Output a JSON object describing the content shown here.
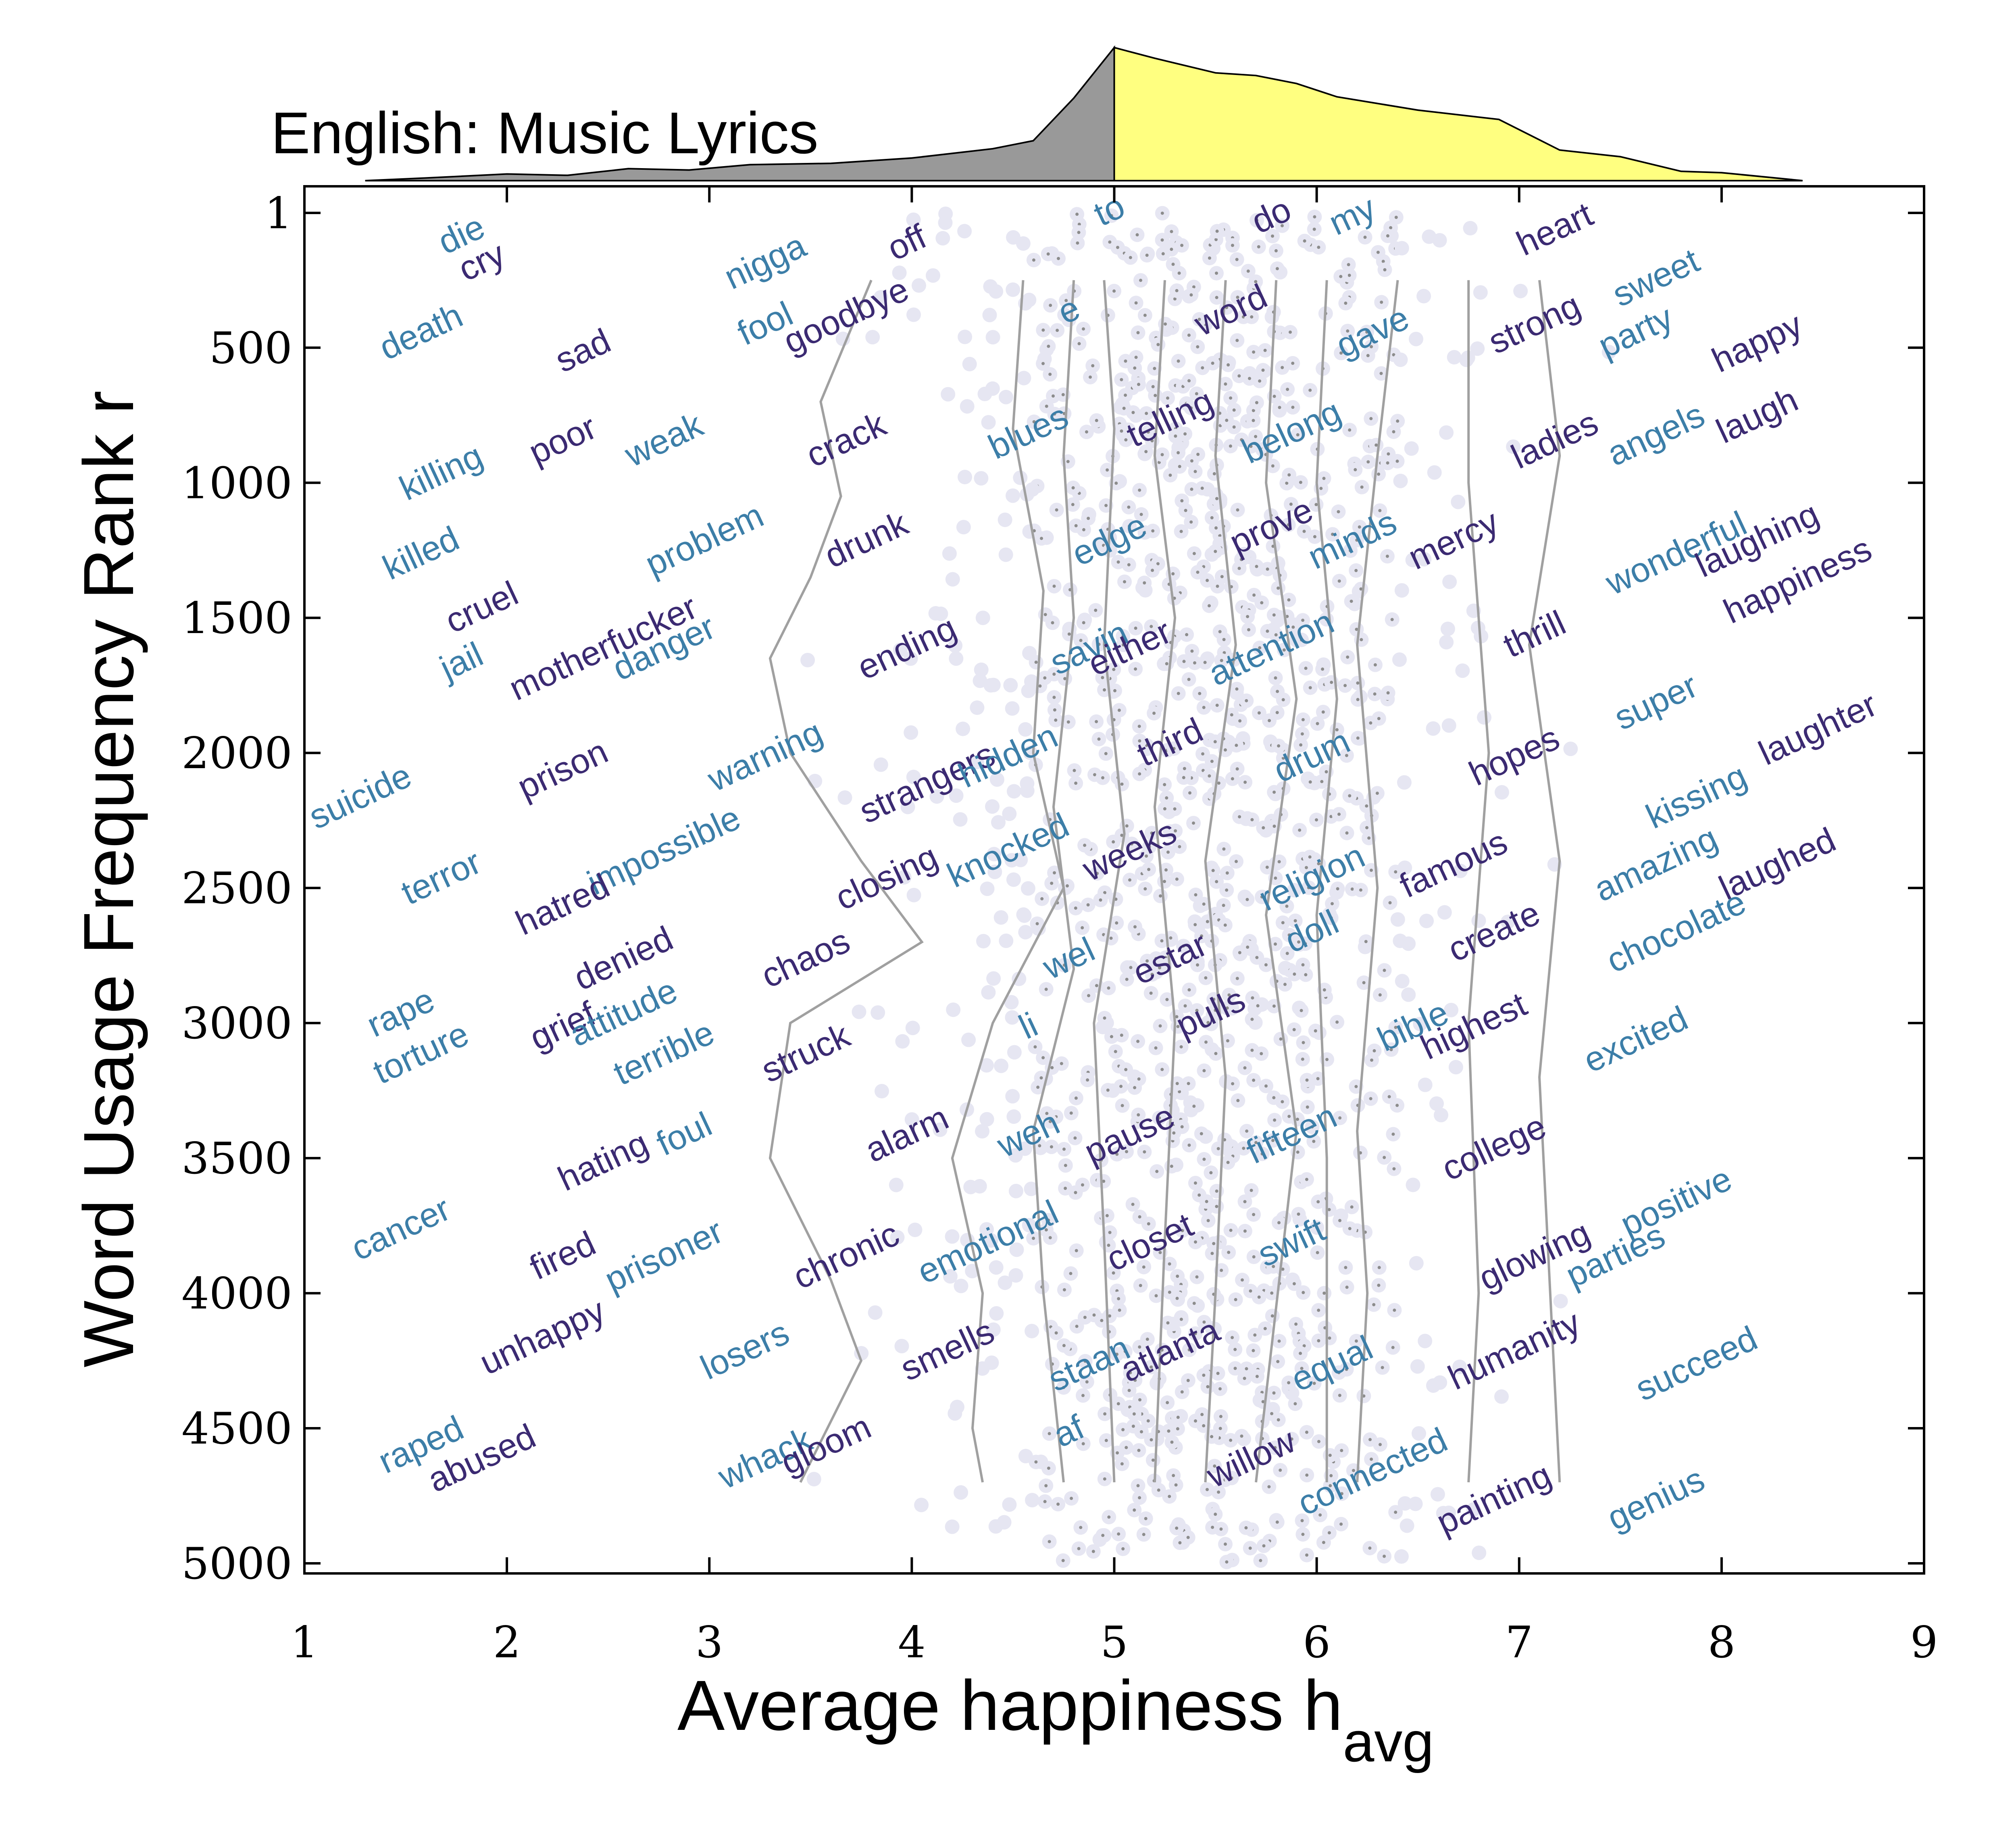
{
  "chart_data": {
    "type": "scatter",
    "title": "English: Music Lyrics",
    "xlabel": "Average happiness h",
    "xlabel_sub": "avg",
    "ylabel": "Word Usage Frequency Rank r",
    "xlim": [
      1,
      9
    ],
    "ylim": [
      1,
      5000
    ],
    "y_inverted": true,
    "x_ticks": [
      "1",
      "2",
      "3",
      "4",
      "5",
      "6",
      "7",
      "8",
      "9"
    ],
    "y_ticks": [
      {
        "value": 1,
        "label": "1"
      },
      {
        "value": 500,
        "label": "500"
      },
      {
        "value": 1000,
        "label": "1000"
      },
      {
        "value": 1500,
        "label": "1500"
      },
      {
        "value": 2000,
        "label": "2000"
      },
      {
        "value": 2500,
        "label": "2500"
      },
      {
        "value": 3000,
        "label": "3000"
      },
      {
        "value": 3500,
        "label": "3500"
      },
      {
        "value": 4000,
        "label": "4000"
      },
      {
        "value": 4500,
        "label": "4500"
      },
      {
        "value": 5000,
        "label": "5000"
      }
    ],
    "colors": {
      "dark_word": "#3b2a72",
      "light_word": "#3c7ea8",
      "point": "#e6e6f2",
      "point_core": "#8c8c8c",
      "contour": "#a0a0a0",
      "hist_negative": "#999999",
      "hist_positive": "#ffff80"
    },
    "histogram": {
      "split": 5,
      "points": [
        [
          1.3,
          0.0
        ],
        [
          1.6,
          0.02
        ],
        [
          2.0,
          0.05
        ],
        [
          2.3,
          0.04
        ],
        [
          2.6,
          0.09
        ],
        [
          2.9,
          0.08
        ],
        [
          3.2,
          0.12
        ],
        [
          3.6,
          0.13
        ],
        [
          4.0,
          0.17
        ],
        [
          4.4,
          0.24
        ],
        [
          4.6,
          0.3
        ],
        [
          4.8,
          0.62
        ],
        [
          5.0,
          1.0
        ],
        [
          5.2,
          0.92
        ],
        [
          5.5,
          0.81
        ],
        [
          5.7,
          0.79
        ],
        [
          5.9,
          0.73
        ],
        [
          6.1,
          0.63
        ],
        [
          6.5,
          0.53
        ],
        [
          6.9,
          0.46
        ],
        [
          7.2,
          0.23
        ],
        [
          7.5,
          0.18
        ],
        [
          7.8,
          0.07
        ],
        [
          8.0,
          0.06
        ],
        [
          8.4,
          0.0
        ]
      ]
    },
    "contours": [
      [
        [
          3.8,
          250
        ],
        [
          3.55,
          700
        ],
        [
          3.65,
          1050
        ],
        [
          3.5,
          1350
        ],
        [
          3.3,
          1650
        ],
        [
          3.4,
          2000
        ],
        [
          3.75,
          2400
        ],
        [
          4.05,
          2700
        ],
        [
          3.4,
          3000
        ],
        [
          3.3,
          3500
        ],
        [
          3.6,
          3950
        ],
        [
          3.75,
          4250
        ],
        [
          3.45,
          4700
        ]
      ],
      [
        [
          4.55,
          250
        ],
        [
          4.5,
          800
        ],
        [
          4.65,
          1400
        ],
        [
          4.6,
          2000
        ],
        [
          4.75,
          2500
        ],
        [
          4.4,
          3000
        ],
        [
          4.2,
          3500
        ],
        [
          4.35,
          4000
        ],
        [
          4.3,
          4500
        ],
        [
          4.35,
          4700
        ]
      ],
      [
        [
          4.8,
          250
        ],
        [
          4.75,
          900
        ],
        [
          4.8,
          1500
        ],
        [
          4.7,
          2200
        ],
        [
          4.8,
          2800
        ],
        [
          4.6,
          3400
        ],
        [
          4.65,
          4000
        ],
        [
          4.75,
          4700
        ]
      ],
      [
        [
          4.95,
          250
        ],
        [
          5.0,
          800
        ],
        [
          4.95,
          1600
        ],
        [
          5.05,
          2300
        ],
        [
          4.9,
          3000
        ],
        [
          4.95,
          3800
        ],
        [
          5.0,
          4700
        ]
      ],
      [
        [
          5.25,
          250
        ],
        [
          5.2,
          900
        ],
        [
          5.3,
          1500
        ],
        [
          5.2,
          2200
        ],
        [
          5.3,
          3000
        ],
        [
          5.25,
          3800
        ],
        [
          5.2,
          4700
        ]
      ],
      [
        [
          5.55,
          250
        ],
        [
          5.5,
          900
        ],
        [
          5.6,
          1600
        ],
        [
          5.45,
          2400
        ],
        [
          5.55,
          3200
        ],
        [
          5.5,
          4000
        ],
        [
          5.45,
          4700
        ]
      ],
      [
        [
          5.8,
          250
        ],
        [
          5.75,
          1000
        ],
        [
          5.9,
          1800
        ],
        [
          5.75,
          2600
        ],
        [
          5.9,
          3400
        ],
        [
          5.7,
          4700
        ]
      ],
      [
        [
          6.05,
          250
        ],
        [
          6.0,
          1000
        ],
        [
          6.1,
          1800
        ],
        [
          6.0,
          2600
        ],
        [
          6.05,
          3500
        ],
        [
          6.05,
          4700
        ]
      ],
      [
        [
          6.4,
          250
        ],
        [
          6.3,
          900
        ],
        [
          6.2,
          1600
        ],
        [
          6.3,
          2500
        ],
        [
          6.2,
          3400
        ],
        [
          6.25,
          4000
        ],
        [
          6.2,
          4700
        ]
      ],
      [
        [
          6.75,
          250
        ],
        [
          6.75,
          1000
        ],
        [
          6.85,
          2000
        ],
        [
          6.75,
          3000
        ],
        [
          6.8,
          4000
        ],
        [
          6.75,
          4700
        ]
      ],
      [
        [
          7.1,
          250
        ],
        [
          7.2,
          900
        ],
        [
          7.05,
          1600
        ],
        [
          7.2,
          2400
        ],
        [
          7.1,
          3200
        ],
        [
          7.2,
          4700
        ]
      ]
    ],
    "words": [
      {
        "w": "die",
        "x": 1.8,
        "r": 120,
        "c": "light"
      },
      {
        "w": "cry",
        "x": 1.9,
        "r": 220,
        "c": "dark"
      },
      {
        "w": "death",
        "x": 1.6,
        "r": 480,
        "c": "light"
      },
      {
        "w": "sad",
        "x": 2.4,
        "r": 550,
        "c": "dark"
      },
      {
        "w": "nigga",
        "x": 3.3,
        "r": 220,
        "c": "light"
      },
      {
        "w": "fool",
        "x": 3.3,
        "r": 450,
        "c": "light"
      },
      {
        "w": "goodbye",
        "x": 3.7,
        "r": 420,
        "c": "dark"
      },
      {
        "w": "off",
        "x": 4.0,
        "r": 150,
        "c": "dark"
      },
      {
        "w": "to",
        "x": 5.0,
        "r": 30,
        "c": "light"
      },
      {
        "w": "do",
        "x": 5.8,
        "r": 50,
        "c": "dark"
      },
      {
        "w": "my",
        "x": 6.2,
        "r": 50,
        "c": "light"
      },
      {
        "w": "heart",
        "x": 7.2,
        "r": 100,
        "c": "dark"
      },
      {
        "w": "sweet",
        "x": 7.7,
        "r": 280,
        "c": "light"
      },
      {
        "w": "e",
        "x": 4.8,
        "r": 400,
        "c": "light"
      },
      {
        "w": "word",
        "x": 5.6,
        "r": 400,
        "c": "dark"
      },
      {
        "w": "gave",
        "x": 6.3,
        "r": 480,
        "c": "light"
      },
      {
        "w": "strong",
        "x": 7.1,
        "r": 450,
        "c": "dark"
      },
      {
        "w": "party",
        "x": 7.6,
        "r": 480,
        "c": "light"
      },
      {
        "w": "happy",
        "x": 8.2,
        "r": 520,
        "c": "dark"
      },
      {
        "w": "killing",
        "x": 1.7,
        "r": 1000,
        "c": "light"
      },
      {
        "w": "poor",
        "x": 2.3,
        "r": 880,
        "c": "dark"
      },
      {
        "w": "weak",
        "x": 2.8,
        "r": 880,
        "c": "light"
      },
      {
        "w": "crack",
        "x": 3.7,
        "r": 880,
        "c": "dark"
      },
      {
        "w": "blues",
        "x": 4.6,
        "r": 850,
        "c": "light"
      },
      {
        "w": "telling",
        "x": 5.3,
        "r": 800,
        "c": "dark"
      },
      {
        "w": "belong",
        "x": 5.9,
        "r": 850,
        "c": "light"
      },
      {
        "w": "ladies",
        "x": 7.2,
        "r": 880,
        "c": "dark"
      },
      {
        "w": "angels",
        "x": 7.7,
        "r": 860,
        "c": "light"
      },
      {
        "w": "laugh",
        "x": 8.2,
        "r": 790,
        "c": "dark"
      },
      {
        "w": "killed",
        "x": 1.6,
        "r": 1300,
        "c": "light"
      },
      {
        "w": "problem",
        "x": 3.0,
        "r": 1250,
        "c": "light"
      },
      {
        "w": "drunk",
        "x": 3.8,
        "r": 1250,
        "c": "dark"
      },
      {
        "w": "edge",
        "x": 5.0,
        "r": 1250,
        "c": "light"
      },
      {
        "w": "prove",
        "x": 5.8,
        "r": 1200,
        "c": "dark"
      },
      {
        "w": "minds",
        "x": 6.2,
        "r": 1250,
        "c": "light"
      },
      {
        "w": "mercy",
        "x": 6.7,
        "r": 1250,
        "c": "dark"
      },
      {
        "w": "wonderful",
        "x": 7.8,
        "r": 1300,
        "c": "light"
      },
      {
        "w": "laughing",
        "x": 8.2,
        "r": 1250,
        "c": "dark"
      },
      {
        "w": "happiness",
        "x": 8.4,
        "r": 1400,
        "c": "dark"
      },
      {
        "w": "cruel",
        "x": 1.9,
        "r": 1500,
        "c": "dark"
      },
      {
        "w": "jail",
        "x": 1.8,
        "r": 1700,
        "c": "light"
      },
      {
        "w": "motherfucker",
        "x": 2.5,
        "r": 1650,
        "c": "dark"
      },
      {
        "w": "danger",
        "x": 2.8,
        "r": 1650,
        "c": "light"
      },
      {
        "w": "ending",
        "x": 4.0,
        "r": 1650,
        "c": "dark"
      },
      {
        "w": "savin",
        "x": 4.9,
        "r": 1650,
        "c": "light"
      },
      {
        "w": "either",
        "x": 5.1,
        "r": 1650,
        "c": "dark"
      },
      {
        "w": "attention",
        "x": 5.8,
        "r": 1650,
        "c": "light"
      },
      {
        "w": "thrill",
        "x": 7.1,
        "r": 1600,
        "c": "dark"
      },
      {
        "w": "super",
        "x": 7.7,
        "r": 1850,
        "c": "light"
      },
      {
        "w": "laughter",
        "x": 8.5,
        "r": 1950,
        "c": "dark"
      },
      {
        "w": "suicide",
        "x": 1.3,
        "r": 2200,
        "c": "light"
      },
      {
        "w": "prison",
        "x": 2.3,
        "r": 2100,
        "c": "dark"
      },
      {
        "w": "warning",
        "x": 3.3,
        "r": 2050,
        "c": "light"
      },
      {
        "w": "strangers",
        "x": 4.1,
        "r": 2150,
        "c": "dark"
      },
      {
        "w": "hidden",
        "x": 4.5,
        "r": 2050,
        "c": "light"
      },
      {
        "w": "third",
        "x": 5.3,
        "r": 2000,
        "c": "dark"
      },
      {
        "w": "drum",
        "x": 6.0,
        "r": 2050,
        "c": "light"
      },
      {
        "w": "hopes",
        "x": 7.0,
        "r": 2050,
        "c": "dark"
      },
      {
        "w": "kissing",
        "x": 7.9,
        "r": 2200,
        "c": "light"
      },
      {
        "w": "terror",
        "x": 1.7,
        "r": 2500,
        "c": "light"
      },
      {
        "w": "impossible",
        "x": 2.8,
        "r": 2400,
        "c": "light"
      },
      {
        "w": "closing",
        "x": 3.9,
        "r": 2500,
        "c": "dark"
      },
      {
        "w": "knocked",
        "x": 4.5,
        "r": 2400,
        "c": "light"
      },
      {
        "w": "weeks",
        "x": 5.1,
        "r": 2400,
        "c": "dark"
      },
      {
        "w": "religion",
        "x": 6.0,
        "r": 2500,
        "c": "light"
      },
      {
        "w": "famous",
        "x": 6.7,
        "r": 2450,
        "c": "dark"
      },
      {
        "w": "amazing",
        "x": 7.7,
        "r": 2450,
        "c": "light"
      },
      {
        "w": "laughed",
        "x": 8.3,
        "r": 2450,
        "c": "dark"
      },
      {
        "w": "hatred",
        "x": 2.3,
        "r": 2600,
        "c": "dark"
      },
      {
        "w": "chaos",
        "x": 3.5,
        "r": 2800,
        "c": "dark"
      },
      {
        "w": "denied",
        "x": 2.6,
        "r": 2800,
        "c": "dark"
      },
      {
        "w": "wel",
        "x": 4.8,
        "r": 2800,
        "c": "light"
      },
      {
        "w": "estar",
        "x": 5.3,
        "r": 2800,
        "c": "dark"
      },
      {
        "w": "doll",
        "x": 6.0,
        "r": 2700,
        "c": "light"
      },
      {
        "w": "create",
        "x": 6.9,
        "r": 2700,
        "c": "dark"
      },
      {
        "w": "chocolate",
        "x": 7.8,
        "r": 2700,
        "c": "light"
      },
      {
        "w": "rape",
        "x": 1.5,
        "r": 3000,
        "c": "light"
      },
      {
        "w": "torture",
        "x": 1.6,
        "r": 3150,
        "c": "light"
      },
      {
        "w": "grief",
        "x": 2.3,
        "r": 3050,
        "c": "dark"
      },
      {
        "w": "attitude",
        "x": 2.6,
        "r": 3000,
        "c": "light"
      },
      {
        "w": "terrible",
        "x": 2.8,
        "r": 3150,
        "c": "light"
      },
      {
        "w": "struck",
        "x": 3.5,
        "r": 3150,
        "c": "dark"
      },
      {
        "w": "li",
        "x": 4.6,
        "r": 3050,
        "c": "light"
      },
      {
        "w": "pulls",
        "x": 5.5,
        "r": 3000,
        "c": "dark"
      },
      {
        "w": "bible",
        "x": 6.5,
        "r": 3050,
        "c": "light"
      },
      {
        "w": "highest",
        "x": 6.8,
        "r": 3050,
        "c": "dark"
      },
      {
        "w": "excited",
        "x": 7.6,
        "r": 3100,
        "c": "light"
      },
      {
        "w": "hating",
        "x": 2.5,
        "r": 3550,
        "c": "dark"
      },
      {
        "w": "foul",
        "x": 2.9,
        "r": 3450,
        "c": "light"
      },
      {
        "w": "alarm",
        "x": 4.0,
        "r": 3450,
        "c": "dark"
      },
      {
        "w": "weh",
        "x": 4.6,
        "r": 3450,
        "c": "light"
      },
      {
        "w": "pause",
        "x": 5.1,
        "r": 3450,
        "c": "dark"
      },
      {
        "w": "fifteen",
        "x": 5.9,
        "r": 3450,
        "c": "light"
      },
      {
        "w": "college",
        "x": 6.9,
        "r": 3500,
        "c": "dark"
      },
      {
        "w": "positive",
        "x": 7.8,
        "r": 3700,
        "c": "light"
      },
      {
        "w": "cancer",
        "x": 1.5,
        "r": 3800,
        "c": "light"
      },
      {
        "w": "fired",
        "x": 2.3,
        "r": 3900,
        "c": "dark"
      },
      {
        "w": "prisoner",
        "x": 2.8,
        "r": 3900,
        "c": "light"
      },
      {
        "w": "chronic",
        "x": 3.7,
        "r": 3900,
        "c": "dark"
      },
      {
        "w": "emotional",
        "x": 4.4,
        "r": 3850,
        "c": "light"
      },
      {
        "w": "closet",
        "x": 5.2,
        "r": 3850,
        "c": "dark"
      },
      {
        "w": "swift",
        "x": 5.9,
        "r": 3850,
        "c": "light"
      },
      {
        "w": "glowing",
        "x": 7.1,
        "r": 3900,
        "c": "dark"
      },
      {
        "w": "parties",
        "x": 7.5,
        "r": 3900,
        "c": "light"
      },
      {
        "w": "unhappy",
        "x": 2.2,
        "r": 4200,
        "c": "dark"
      },
      {
        "w": "losers",
        "x": 3.2,
        "r": 4250,
        "c": "light"
      },
      {
        "w": "smells",
        "x": 4.2,
        "r": 4250,
        "c": "dark"
      },
      {
        "w": "staan",
        "x": 4.9,
        "r": 4300,
        "c": "light"
      },
      {
        "w": "atlanta",
        "x": 5.3,
        "r": 4250,
        "c": "dark"
      },
      {
        "w": "equal",
        "x": 6.1,
        "r": 4300,
        "c": "light"
      },
      {
        "w": "humanity",
        "x": 7.0,
        "r": 4250,
        "c": "dark"
      },
      {
        "w": "succeed",
        "x": 7.9,
        "r": 4300,
        "c": "light"
      },
      {
        "w": "raped",
        "x": 1.6,
        "r": 4600,
        "c": "light"
      },
      {
        "w": "abused",
        "x": 1.9,
        "r": 4650,
        "c": "dark"
      },
      {
        "w": "whack",
        "x": 3.3,
        "r": 4650,
        "c": "light"
      },
      {
        "w": "gloom",
        "x": 3.6,
        "r": 4600,
        "c": "dark"
      },
      {
        "w": "af",
        "x": 4.8,
        "r": 4550,
        "c": "light"
      },
      {
        "w": "willow",
        "x": 5.7,
        "r": 4650,
        "c": "dark"
      },
      {
        "w": "connected",
        "x": 6.3,
        "r": 4700,
        "c": "light"
      },
      {
        "w": "painting",
        "x": 6.9,
        "r": 4800,
        "c": "dark"
      },
      {
        "w": "genius",
        "x": 7.7,
        "r": 4800,
        "c": "light"
      }
    ]
  }
}
